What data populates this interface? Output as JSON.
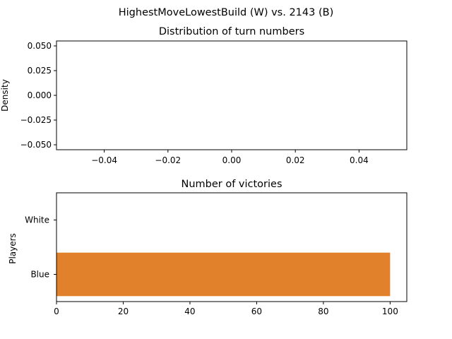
{
  "suptitle": "HighestMoveLowestBuild (W) vs. 2143 (B)",
  "chart_data": [
    {
      "type": "histogram",
      "title": "Distribution of turn numbers",
      "xlabel": "",
      "ylabel": "Density",
      "xlim": [
        -0.055,
        0.055
      ],
      "ylim": [
        -0.055,
        0.055
      ],
      "xticks": [
        -0.04,
        -0.02,
        0.0,
        0.02,
        0.04
      ],
      "xtick_labels": [
        "−0.04",
        "−0.02",
        "0.00",
        "0.02",
        "0.04"
      ],
      "yticks": [
        0.05,
        0.025,
        0.0,
        -0.025,
        -0.05
      ],
      "ytick_labels": [
        "0.050",
        "0.025",
        "0.000",
        "−0.025",
        "−0.050"
      ],
      "values": [],
      "grid": false
    },
    {
      "type": "bar",
      "orientation": "horizontal",
      "title": "Number of victories",
      "xlabel": "",
      "ylabel": "Players",
      "categories": [
        "White",
        "Blue"
      ],
      "values": [
        0,
        100
      ],
      "colors": [
        "#e1812c",
        "#e1812c"
      ],
      "xlim": [
        0,
        105
      ],
      "xticks": [
        0,
        20,
        40,
        60,
        80,
        100
      ],
      "xtick_labels": [
        "0",
        "20",
        "40",
        "60",
        "80",
        "100"
      ],
      "grid": false
    }
  ]
}
